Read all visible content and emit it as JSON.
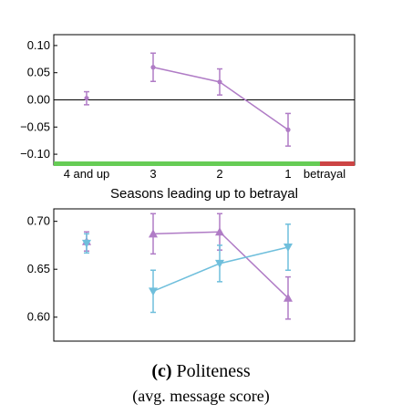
{
  "chart_data": [
    {
      "type": "line",
      "title": "",
      "xlabel": "Seasons leading up to betrayal",
      "ylabel": "",
      "categories": [
        "4 and up",
        "3",
        "2",
        "1",
        "betrayal"
      ],
      "ylim": [
        -0.12,
        0.12
      ],
      "yticks": [
        "0.10",
        "0.05",
        "0.00",
        "−0.05",
        "−0.10"
      ],
      "zero_line": true,
      "grid": false,
      "series": [
        {
          "color": "#b07cc6",
          "marker": "circle",
          "points": [
            {
              "x": "4 and up",
              "y": 0.003,
              "err": 0.012,
              "connected": false
            },
            {
              "x": "3",
              "y": 0.06,
              "err": 0.026,
              "connected": true
            },
            {
              "x": "2",
              "y": 0.033,
              "err": 0.024,
              "connected": true
            },
            {
              "x": "1",
              "y": -0.055,
              "err": 0.03,
              "connected": true
            }
          ]
        }
      ],
      "timeline_bar": {
        "green": "#66cc55",
        "red": "#cc4444"
      }
    },
    {
      "type": "line",
      "title": "",
      "xlabel": "",
      "ylabel": "",
      "categories": [
        "4 and up",
        "3",
        "2",
        "1"
      ],
      "ylim": [
        0.575,
        0.713
      ],
      "yticks": [
        "0.70",
        "0.65",
        "0.60"
      ],
      "grid": false,
      "series": [
        {
          "color": "#b07cc6",
          "marker": "triangle-up",
          "points": [
            {
              "x": "4 and up",
              "y": 0.679,
              "err": 0.01,
              "connected": false
            },
            {
              "x": "3",
              "y": 0.687,
              "err": 0.021,
              "connected": true
            },
            {
              "x": "2",
              "y": 0.689,
              "err": 0.019,
              "connected": true
            },
            {
              "x": "1",
              "y": 0.62,
              "err": 0.022,
              "connected": true
            }
          ]
        },
        {
          "color": "#6fbfdc",
          "marker": "triangle-down",
          "points": [
            {
              "x": "4 and up",
              "y": 0.677,
              "err": 0.01,
              "connected": false
            },
            {
              "x": "3",
              "y": 0.627,
              "err": 0.022,
              "connected": true
            },
            {
              "x": "2",
              "y": 0.656,
              "err": 0.019,
              "connected": true
            },
            {
              "x": "1",
              "y": 0.673,
              "err": 0.024,
              "connected": true
            }
          ]
        }
      ]
    }
  ],
  "caption": {
    "label": "(c)",
    "title": "Politeness",
    "subtitle": "(avg. message score)"
  }
}
